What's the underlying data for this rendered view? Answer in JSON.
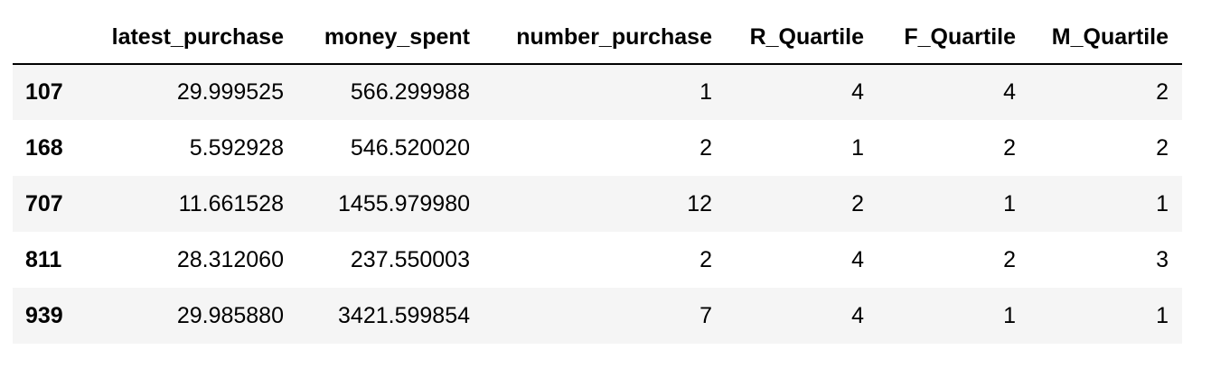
{
  "table": {
    "columns": [
      "latest_purchase",
      "money_spent",
      "number_purchase",
      "R_Quartile",
      "F_Quartile",
      "M_Quartile"
    ],
    "rows": [
      {
        "index": "107",
        "cells": [
          "29.999525",
          "566.299988",
          "1",
          "4",
          "4",
          "2"
        ]
      },
      {
        "index": "168",
        "cells": [
          "5.592928",
          "546.520020",
          "2",
          "1",
          "2",
          "2"
        ]
      },
      {
        "index": "707",
        "cells": [
          "11.661528",
          "1455.979980",
          "12",
          "2",
          "1",
          "1"
        ]
      },
      {
        "index": "811",
        "cells": [
          "28.312060",
          "237.550003",
          "2",
          "4",
          "2",
          "3"
        ]
      },
      {
        "index": "939",
        "cells": [
          "29.985880",
          "3421.599854",
          "7",
          "4",
          "1",
          "1"
        ]
      }
    ]
  },
  "colors": {
    "stripe": "#f5f5f5",
    "rule": "#000000"
  }
}
